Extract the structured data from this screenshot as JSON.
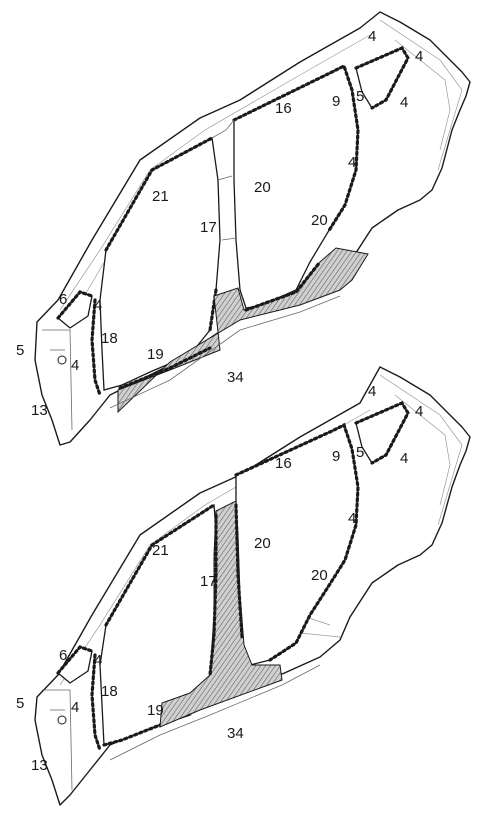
{
  "figure": {
    "colors": {
      "outline": "#1a1a1a",
      "shade": "#bdbdbd",
      "background": "#ffffff"
    },
    "views": [
      {
        "id": "top",
        "shaded_section": "rocker and rear quarter",
        "labels": {
          "roof_rear_a": "4",
          "roof_rear_b": "4",
          "quarter_window_top": "4",
          "quarter_window_right": "5",
          "c_pillar": "9",
          "roof_rail": "16",
          "rear_wheel_arch": "4",
          "b_pillar_rear": "20",
          "rear_door_lower": "20",
          "front_door_top": "21",
          "b_pillar_front": "17",
          "a_pillar_upper": "6",
          "a_pillar_mid": "4",
          "hinge_pillar": "18",
          "hinge_pillar_lower": "4",
          "front_rocker": "19",
          "rocker": "34",
          "front_edge": "5",
          "front_lower": "13"
        }
      },
      {
        "id": "bottom",
        "shaded_section": "b-pillar and center rocker",
        "labels": {
          "roof_rear_a": "4",
          "roof_rear_b": "4",
          "quarter_window_top": "4",
          "quarter_window_right": "5",
          "c_pillar": "9",
          "roof_rail": "16",
          "rear_wheel_arch": "4",
          "b_pillar_rear": "20",
          "rear_door_lower": "20",
          "front_door_top": "21",
          "b_pillar_front": "17",
          "a_pillar_upper": "6",
          "a_pillar_mid": "4",
          "hinge_pillar": "18",
          "hinge_pillar_lower": "4",
          "front_rocker": "19",
          "rocker": "34",
          "front_edge": "5",
          "front_lower": "13"
        }
      }
    ]
  }
}
